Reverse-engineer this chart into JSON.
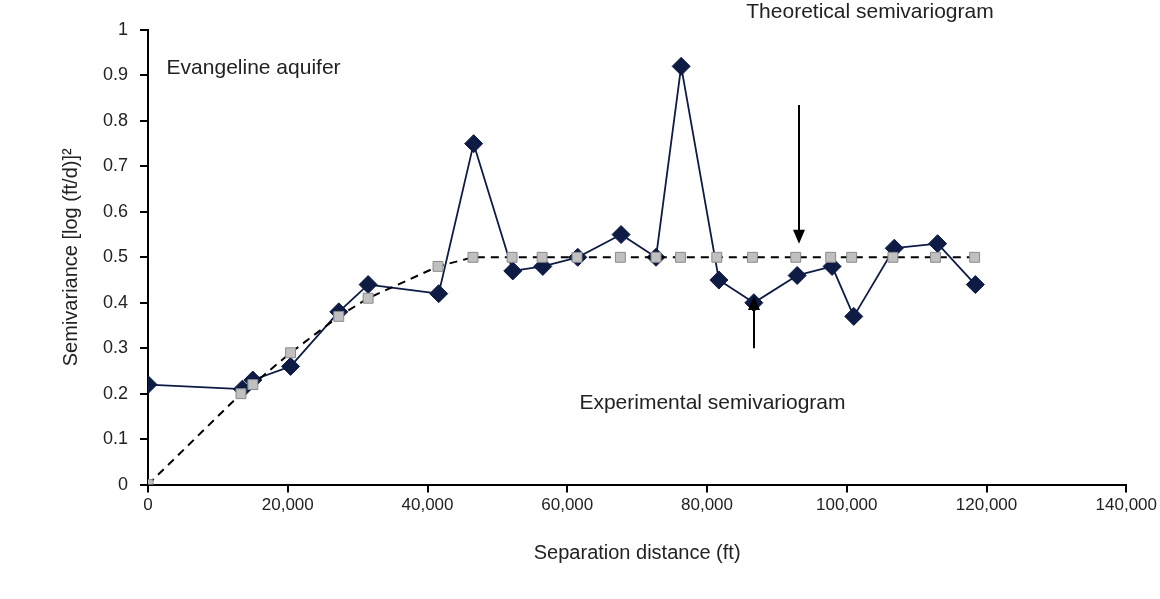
{
  "chart_data": {
    "type": "line",
    "xlabel": "Separation distance (ft)",
    "ylabel": "Semivariance [log (ft/d)]²",
    "xlim": [
      0,
      140000
    ],
    "xticks": [
      0,
      {
        "value": 20000,
        "label": "20,000"
      },
      {
        "value": 40000,
        "label": "40,000"
      },
      {
        "value": 60000,
        "label": "60,000"
      },
      {
        "value": 80000,
        "label": "80,000"
      },
      {
        "value": 100000,
        "label": "100,000"
      },
      {
        "value": 120000,
        "label": "120,000"
      },
      {
        "value": 140000,
        "label": "140,000"
      }
    ],
    "ylim": [
      0,
      1
    ],
    "yticks": [
      0,
      0.1,
      0.2,
      0.3,
      0.4,
      0.5,
      0.6,
      0.7,
      0.8,
      0.9,
      1
    ],
    "grid": false,
    "legend": false,
    "series": [
      {
        "color": "#0d1b45",
        "marker": "diamond",
        "line_style": "solid",
        "x": [
          0,
          13500,
          15000,
          20400,
          27300,
          31500,
          41600,
          46600,
          52200,
          56500,
          61500,
          67700,
          72700,
          76300,
          81700,
          86700,
          92900,
          97900,
          101000,
          106800,
          113000,
          118400
        ],
        "values": [
          0.22,
          0.21,
          0.23,
          0.26,
          0.38,
          0.44,
          0.42,
          0.75,
          0.47,
          0.48,
          0.5,
          0.55,
          0.5,
          0.92,
          0.45,
          0.4,
          0.46,
          0.48,
          0.37,
          0.52,
          0.53,
          0.44
        ]
      },
      {
        "color": "#c0c0c0",
        "marker": "square",
        "line_style": "dashed",
        "x": [
          0,
          13300,
          15000,
          20400,
          27300,
          31500,
          41500,
          46500,
          52100,
          56400,
          61400,
          67600,
          72700,
          76200,
          81400,
          86500,
          92700,
          97700,
          100700,
          106600,
          112700,
          118300
        ],
        "values": [
          0,
          0.2,
          0.22,
          0.29,
          0.37,
          0.41,
          0.48,
          0.5,
          0.5,
          0.5,
          0.5,
          0.5,
          0.5,
          0.5,
          0.5,
          0.5,
          0.5,
          0.5,
          0.5,
          0.5,
          0.5,
          0.5
        ]
      }
    ],
    "annotations": [
      "Evangeline aquifer",
      "Theoretical semivariogram",
      "Experimental semivariogram"
    ]
  }
}
